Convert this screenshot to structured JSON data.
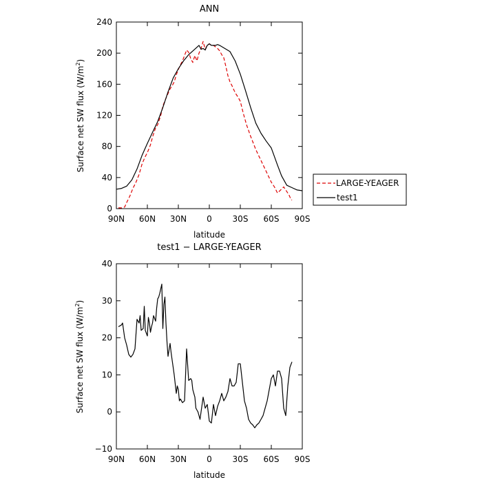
{
  "chart_data": [
    {
      "type": "line",
      "title": "ANN",
      "xlabel": "latitude",
      "ylabel": "Surface net SW flux (W/m²)",
      "xlim": [
        90,
        -90
      ],
      "ylim": [
        0,
        240
      ],
      "xticks": [
        {
          "value": 90,
          "label": "90N"
        },
        {
          "value": 60,
          "label": "60N"
        },
        {
          "value": 30,
          "label": "30N"
        },
        {
          "value": 0,
          "label": "0"
        },
        {
          "value": -30,
          "label": "30S"
        },
        {
          "value": -60,
          "label": "60S"
        },
        {
          "value": -90,
          "label": "90S"
        }
      ],
      "yticks": [
        {
          "value": 0,
          "label": "0"
        },
        {
          "value": 40,
          "label": "40"
        },
        {
          "value": 80,
          "label": "80"
        },
        {
          "value": 120,
          "label": "120"
        },
        {
          "value": 160,
          "label": "160"
        },
        {
          "value": 200,
          "label": "200"
        },
        {
          "value": 240,
          "label": "240"
        }
      ],
      "legend": "right-bottom, outside",
      "series": [
        {
          "name": "LARGE-YEAGER",
          "color": "#dd0000",
          "dash": "dashed",
          "x": [
            88,
            85,
            82,
            80,
            77,
            74,
            71,
            68,
            65,
            62,
            60,
            57,
            55,
            52,
            50,
            47,
            45,
            42,
            40,
            38,
            36,
            34,
            32,
            30,
            28,
            26,
            24,
            22,
            20,
            18,
            16,
            14,
            12,
            10,
            8,
            6,
            4,
            2,
            0,
            -2,
            -4,
            -6,
            -8,
            -10,
            -12,
            -14,
            -16,
            -18,
            -20,
            -22,
            -24,
            -26,
            -28,
            -30,
            -33,
            -36,
            -40,
            -45,
            -50,
            -55,
            -60,
            -63,
            -66,
            -69,
            -72,
            -75,
            -77,
            -79,
            -80
          ],
          "y": [
            1,
            1,
            2,
            8,
            16,
            26,
            34,
            44,
            58,
            67,
            72,
            82,
            92,
            104,
            108,
            120,
            132,
            142,
            148,
            154,
            158,
            163,
            172,
            179,
            185,
            190,
            197,
            204,
            201,
            193,
            188,
            197,
            190,
            200,
            206,
            215,
            205,
            210,
            212,
            210,
            210,
            208,
            206,
            203,
            198,
            194,
            183,
            171,
            163,
            158,
            152,
            147,
            143,
            138,
            122,
            108,
            93,
            76,
            62,
            48,
            34,
            28,
            20,
            24,
            28,
            22,
            18,
            12,
            11
          ]
        },
        {
          "name": "test1",
          "color": "#000000",
          "dash": "solid",
          "x": [
            90,
            85,
            80,
            75,
            70,
            65,
            60,
            55,
            50,
            45,
            40,
            35,
            30,
            25,
            20,
            15,
            10,
            8,
            6,
            4,
            2,
            0,
            -2,
            -4,
            -6,
            -8,
            -10,
            -15,
            -20,
            -25,
            -30,
            -35,
            -40,
            -45,
            -50,
            -55,
            -60,
            -63,
            -66,
            -70,
            -75,
            -80,
            -85,
            -90
          ],
          "y": [
            25,
            26,
            29,
            37,
            51,
            69,
            84,
            98,
            112,
            130,
            150,
            168,
            180,
            190,
            198,
            204,
            210,
            205,
            206,
            204,
            210,
            212,
            210,
            210,
            210,
            211,
            210,
            206,
            202,
            190,
            173,
            152,
            130,
            110,
            97,
            87,
            78,
            67,
            56,
            42,
            30,
            27,
            24,
            23
          ]
        }
      ]
    },
    {
      "type": "line",
      "title": "test1 − LARGE-YEAGER",
      "xlabel": "latitude",
      "ylabel": "Surface net SW flux (W/m²)",
      "xlim": [
        90,
        -90
      ],
      "ylim": [
        -10,
        40
      ],
      "xticks": [
        {
          "value": 90,
          "label": "90N"
        },
        {
          "value": 60,
          "label": "60N"
        },
        {
          "value": 30,
          "label": "30N"
        },
        {
          "value": 0,
          "label": "0"
        },
        {
          "value": -30,
          "label": "30S"
        },
        {
          "value": -60,
          "label": "60S"
        },
        {
          "value": -90,
          "label": "90S"
        }
      ],
      "yticks": [
        {
          "value": -10,
          "label": "−10"
        },
        {
          "value": 0,
          "label": "0"
        },
        {
          "value": 10,
          "label": "10"
        },
        {
          "value": 20,
          "label": "20"
        },
        {
          "value": 30,
          "label": "30"
        },
        {
          "value": 40,
          "label": "40"
        }
      ],
      "series": [
        {
          "name": "test1 - LARGE-YEAGER",
          "color": "#000000",
          "dash": "solid",
          "x": [
            88,
            85,
            84,
            82,
            80,
            78,
            76,
            74,
            72,
            70,
            69,
            68,
            67,
            66,
            64,
            63,
            62,
            60,
            59,
            58,
            57,
            56,
            55,
            54,
            52,
            51,
            50,
            49,
            48,
            46,
            45,
            44,
            43,
            42,
            41,
            40,
            38,
            37,
            36,
            35,
            34,
            32,
            31,
            30,
            29,
            28,
            27,
            26,
            24,
            22,
            20,
            18,
            17,
            16,
            15,
            14,
            13,
            12,
            11,
            10,
            9,
            8,
            6,
            4,
            2,
            0,
            -2,
            -4,
            -6,
            -8,
            -10,
            -12,
            -14,
            -16,
            -18,
            -20,
            -22,
            -24,
            -26,
            -28,
            -30,
            -32,
            -34,
            -36,
            -38,
            -40,
            -42,
            -44,
            -46,
            -48,
            -50,
            -52,
            -54,
            -56,
            -58,
            -60,
            -62,
            -64,
            -66,
            -68,
            -70,
            -72,
            -74,
            -76,
            -78,
            -80
          ],
          "y": [
            23,
            23.5,
            24,
            20,
            18,
            15.5,
            14.8,
            15.5,
            17,
            25,
            24.5,
            24,
            26,
            22,
            22.5,
            28.5,
            22,
            20.5,
            25.5,
            24,
            21.5,
            23,
            24,
            26,
            24.5,
            28,
            30.5,
            31,
            32,
            34.5,
            22.5,
            29,
            31,
            24,
            19,
            15,
            18.5,
            16,
            14,
            12,
            10,
            5,
            7,
            6,
            3,
            3.5,
            3,
            2.5,
            3,
            17,
            8.5,
            9,
            8.5,
            6,
            5,
            4,
            1,
            0.5,
            0,
            -1,
            -2,
            0,
            4,
            1,
            2,
            -2.5,
            -3,
            2,
            -1,
            1.5,
            3,
            5,
            3,
            4,
            5.5,
            9,
            7,
            7,
            8,
            13,
            13,
            8,
            3,
            1,
            -2,
            -3,
            -3.5,
            -4.3,
            -3.5,
            -3,
            -2,
            -1,
            1,
            3,
            6,
            9,
            10,
            7,
            11,
            11,
            9,
            1,
            -1,
            7,
            12,
            13.5
          ]
        }
      ]
    }
  ]
}
